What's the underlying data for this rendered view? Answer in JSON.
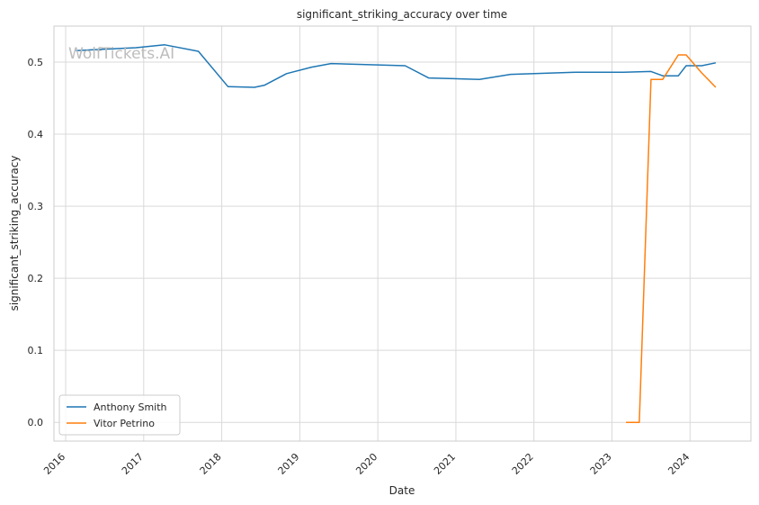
{
  "chart_data": {
    "type": "line",
    "title": "significant_striking_accuracy over time",
    "xlabel": "Date",
    "ylabel": "significant_striking_accuracy",
    "watermark": "WolfTickets.AI",
    "x_ticks": [
      "2016",
      "2017",
      "2018",
      "2019",
      "2020",
      "2021",
      "2022",
      "2023",
      "2024"
    ],
    "y_ticks": [
      "0.0",
      "0.1",
      "0.2",
      "0.3",
      "0.4",
      "0.5"
    ],
    "xlim": [
      2015.85,
      2024.78
    ],
    "ylim": [
      -0.026,
      0.55
    ],
    "grid": true,
    "legend_position": "lower-left",
    "series": [
      {
        "name": "Anthony Smith",
        "color": "#1f77b4",
        "x": [
          2016.13,
          2016.5,
          2016.9,
          2017.27,
          2017.7,
          2018.08,
          2018.42,
          2018.55,
          2018.83,
          2019.15,
          2019.4,
          2020.35,
          2020.65,
          2021.3,
          2021.7,
          2022.55,
          2023.15,
          2023.5,
          2023.65,
          2023.85,
          2023.95,
          2024.15,
          2024.33
        ],
        "y": [
          0.516,
          0.518,
          0.52,
          0.524,
          0.515,
          0.466,
          0.465,
          0.468,
          0.484,
          0.493,
          0.498,
          0.495,
          0.478,
          0.476,
          0.483,
          0.486,
          0.486,
          0.487,
          0.481,
          0.481,
          0.495,
          0.495,
          0.499
        ]
      },
      {
        "name": "Vitor Petrino",
        "color": "#ff7f0e",
        "x": [
          2023.18,
          2023.35,
          2023.5,
          2023.65,
          2023.85,
          2023.95,
          2024.15,
          2024.33
        ],
        "y": [
          0.0,
          0.0,
          0.476,
          0.476,
          0.51,
          0.51,
          0.485,
          0.465
        ]
      }
    ]
  }
}
